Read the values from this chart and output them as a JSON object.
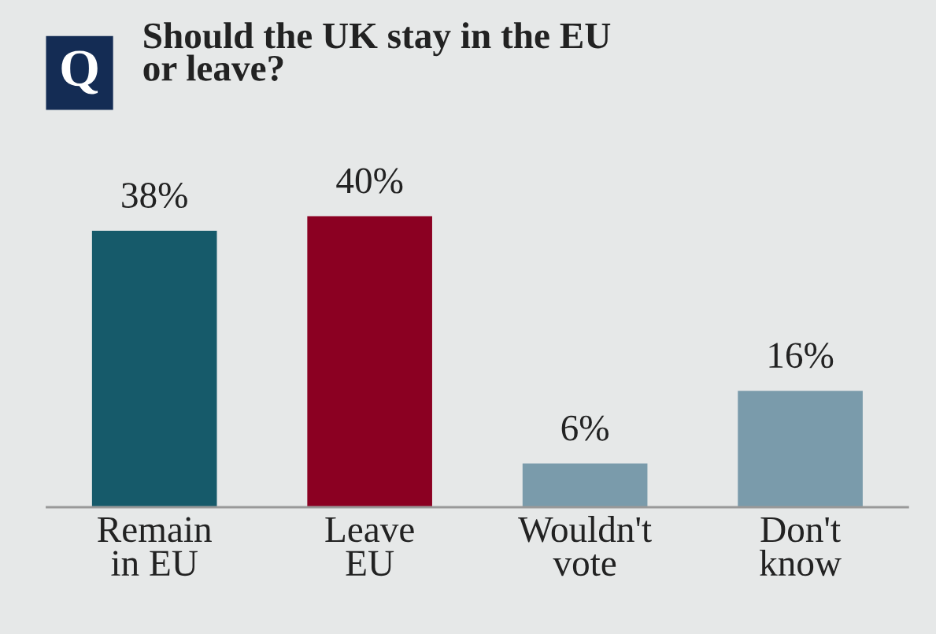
{
  "chart_data": {
    "type": "bar",
    "title": "Should the UK stay in the EU\nor leave?",
    "annotations": [
      "Q"
    ],
    "categories": [
      "Remain\nin EU",
      "Leave\nEU",
      "Wouldn't\nvote",
      "Don't\nknow"
    ],
    "values": [
      38,
      40,
      6,
      16
    ],
    "colors": [
      "#165a6a",
      "#8b0022",
      "#7a9bab",
      "#7a9bab"
    ],
    "data_labels": true,
    "value_labels": [
      "38%",
      "40%",
      "6%",
      "16%"
    ],
    "grid": false,
    "legend": false
  }
}
